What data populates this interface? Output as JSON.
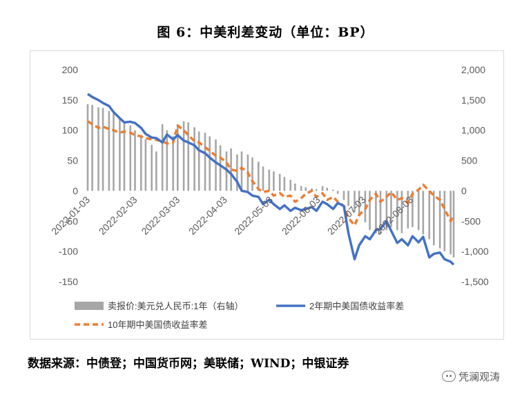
{
  "figure_title": "图 6：中美利差变动（单位：BP）",
  "source_note": "数据来源：中债登；中国货币网；美联储；WIND；中银证券",
  "watermark": {
    "text": "凭澜观涛",
    "icon": "wechat-icon"
  },
  "colors": {
    "bars": "#a6a6a6",
    "two_year": "#4472c4",
    "ten_year": "#ed7d31",
    "axis_text": "#595959"
  },
  "chart_data": {
    "type": "bar-line-combo",
    "left_axis": {
      "ticks": [
        "200",
        "150",
        "100",
        "50",
        "0",
        "-50",
        "-100",
        "-150"
      ],
      "ylim": [
        -150,
        200
      ]
    },
    "right_axis": {
      "ticks": [
        "2,000",
        "1,500",
        "1,000",
        "500",
        "0",
        "-500",
        "-1,000",
        "-1,500"
      ],
      "ylim": [
        -1500,
        2000
      ]
    },
    "x_tick_labels": [
      "2022-01-03",
      "2022-02-03",
      "2022-03-03",
      "2022-04-03",
      "2022-05-03",
      "2022-06-03",
      "2022-07-03",
      "2022-08-03"
    ],
    "x_range": [
      "2022-01-03",
      "2022-08-31"
    ],
    "legend": {
      "placement": "bottom",
      "entries": [
        "卖报价:美元兑人民币:1年（右轴）",
        "2年期中美国债收益率差",
        "10年期中美国债收益率差"
      ]
    },
    "bars": {
      "name": "卖报价:美元兑人民币:1年（右轴）",
      "axis": "right",
      "points": [
        [
          "2022-01-03",
          1430
        ],
        [
          "2022-01-06",
          1420
        ],
        [
          "2022-01-10",
          1380
        ],
        [
          "2022-01-13",
          1370
        ],
        [
          "2022-01-17",
          1320
        ],
        [
          "2022-01-20",
          1280
        ],
        [
          "2022-01-24",
          1200
        ],
        [
          "2022-01-27",
          1150
        ],
        [
          "2022-01-31",
          1080
        ],
        [
          "2022-02-03",
          1000
        ],
        [
          "2022-02-07",
          920
        ],
        [
          "2022-02-10",
          850
        ],
        [
          "2022-02-14",
          760
        ],
        [
          "2022-02-17",
          650
        ],
        [
          "2022-02-21",
          1100
        ],
        [
          "2022-02-24",
          1000
        ],
        [
          "2022-02-28",
          900
        ],
        [
          "2022-03-03",
          1080
        ],
        [
          "2022-03-07",
          1150
        ],
        [
          "2022-03-10",
          1130
        ],
        [
          "2022-03-14",
          1050
        ],
        [
          "2022-03-17",
          980
        ],
        [
          "2022-03-21",
          960
        ],
        [
          "2022-03-24",
          900
        ],
        [
          "2022-03-28",
          850
        ],
        [
          "2022-03-31",
          750
        ],
        [
          "2022-04-04",
          650
        ],
        [
          "2022-04-07",
          700
        ],
        [
          "2022-04-11",
          600
        ],
        [
          "2022-04-14",
          650
        ],
        [
          "2022-04-18",
          600
        ],
        [
          "2022-04-21",
          550
        ],
        [
          "2022-04-25",
          480
        ],
        [
          "2022-04-28",
          400
        ],
        [
          "2022-05-02",
          350
        ],
        [
          "2022-05-05",
          320
        ],
        [
          "2022-05-09",
          280
        ],
        [
          "2022-05-12",
          230
        ],
        [
          "2022-05-16",
          180
        ],
        [
          "2022-05-19",
          120
        ],
        [
          "2022-05-23",
          80
        ],
        [
          "2022-05-26",
          60
        ],
        [
          "2022-05-30",
          40
        ],
        [
          "2022-06-02",
          30
        ],
        [
          "2022-06-06",
          80
        ],
        [
          "2022-06-09",
          50
        ],
        [
          "2022-06-13",
          20
        ],
        [
          "2022-06-16",
          -50
        ],
        [
          "2022-06-20",
          -150
        ],
        [
          "2022-06-23",
          -250
        ],
        [
          "2022-06-27",
          -350
        ],
        [
          "2022-06-30",
          -420
        ],
        [
          "2022-07-04",
          -520
        ],
        [
          "2022-07-07",
          -650
        ],
        [
          "2022-07-11",
          -700
        ],
        [
          "2022-07-14",
          -720
        ],
        [
          "2022-07-18",
          -650
        ],
        [
          "2022-07-21",
          -600
        ],
        [
          "2022-07-25",
          -650
        ],
        [
          "2022-07-28",
          -700
        ],
        [
          "2022-08-01",
          -620
        ],
        [
          "2022-08-04",
          -600
        ],
        [
          "2022-08-08",
          -650
        ],
        [
          "2022-08-11",
          -720
        ],
        [
          "2022-08-15",
          -800
        ],
        [
          "2022-08-18",
          -900
        ],
        [
          "2022-08-22",
          -950
        ],
        [
          "2022-08-25",
          -1000
        ],
        [
          "2022-08-29",
          -1050
        ],
        [
          "2022-08-31",
          -1100
        ]
      ]
    },
    "series": [
      {
        "name": "2年期中美国债收益率差",
        "axis": "left",
        "points": [
          [
            "2022-01-03",
            160
          ],
          [
            "2022-01-06",
            155
          ],
          [
            "2022-01-10",
            150
          ],
          [
            "2022-01-13",
            145
          ],
          [
            "2022-01-17",
            140
          ],
          [
            "2022-01-20",
            130
          ],
          [
            "2022-01-24",
            120
          ],
          [
            "2022-01-27",
            113
          ],
          [
            "2022-01-31",
            114
          ],
          [
            "2022-02-03",
            112
          ],
          [
            "2022-02-07",
            104
          ],
          [
            "2022-02-10",
            94
          ],
          [
            "2022-02-14",
            88
          ],
          [
            "2022-02-17",
            87
          ],
          [
            "2022-02-21",
            80
          ],
          [
            "2022-02-24",
            93
          ],
          [
            "2022-02-28",
            85
          ],
          [
            "2022-03-03",
            92
          ],
          [
            "2022-03-07",
            83
          ],
          [
            "2022-03-10",
            80
          ],
          [
            "2022-03-14",
            75
          ],
          [
            "2022-03-17",
            67
          ],
          [
            "2022-03-21",
            62
          ],
          [
            "2022-03-24",
            55
          ],
          [
            "2022-03-28",
            47
          ],
          [
            "2022-03-31",
            42
          ],
          [
            "2022-04-04",
            35
          ],
          [
            "2022-04-07",
            28
          ],
          [
            "2022-04-11",
            15
          ],
          [
            "2022-04-14",
            0
          ],
          [
            "2022-04-18",
            -2
          ],
          [
            "2022-04-21",
            -8
          ],
          [
            "2022-04-25",
            -10
          ],
          [
            "2022-04-28",
            -22
          ],
          [
            "2022-05-02",
            -15
          ],
          [
            "2022-05-05",
            -22
          ],
          [
            "2022-05-09",
            -30
          ],
          [
            "2022-05-12",
            -24
          ],
          [
            "2022-05-16",
            -33
          ],
          [
            "2022-05-19",
            -28
          ],
          [
            "2022-05-23",
            -32
          ],
          [
            "2022-05-26",
            -30
          ],
          [
            "2022-05-30",
            -27
          ],
          [
            "2022-06-02",
            -33
          ],
          [
            "2022-06-06",
            -18
          ],
          [
            "2022-06-09",
            -22
          ],
          [
            "2022-06-13",
            -30
          ],
          [
            "2022-06-16",
            -20
          ],
          [
            "2022-06-20",
            -25
          ],
          [
            "2022-06-23",
            -70
          ],
          [
            "2022-06-27",
            -113
          ],
          [
            "2022-06-30",
            -90
          ],
          [
            "2022-07-04",
            -75
          ],
          [
            "2022-07-07",
            -80
          ],
          [
            "2022-07-11",
            -65
          ],
          [
            "2022-07-14",
            -63
          ],
          [
            "2022-07-18",
            -50
          ],
          [
            "2022-07-21",
            -66
          ],
          [
            "2022-07-25",
            -86
          ],
          [
            "2022-07-28",
            -80
          ],
          [
            "2022-08-01",
            -90
          ],
          [
            "2022-08-04",
            -75
          ],
          [
            "2022-08-08",
            -85
          ],
          [
            "2022-08-11",
            -76
          ],
          [
            "2022-08-15",
            -110
          ],
          [
            "2022-08-18",
            -104
          ],
          [
            "2022-08-22",
            -102
          ],
          [
            "2022-08-25",
            -113
          ],
          [
            "2022-08-29",
            -117
          ],
          [
            "2022-08-31",
            -122
          ]
        ]
      },
      {
        "name": "10年期中美国债收益率差",
        "axis": "left",
        "points": [
          [
            "2022-01-03",
            115
          ],
          [
            "2022-01-06",
            110
          ],
          [
            "2022-01-10",
            104
          ],
          [
            "2022-01-13",
            106
          ],
          [
            "2022-01-17",
            102
          ],
          [
            "2022-01-20",
            100
          ],
          [
            "2022-01-24",
            96
          ],
          [
            "2022-01-27",
            98
          ],
          [
            "2022-01-31",
            96
          ],
          [
            "2022-02-03",
            92
          ],
          [
            "2022-02-07",
            90
          ],
          [
            "2022-02-10",
            87
          ],
          [
            "2022-02-14",
            85
          ],
          [
            "2022-02-17",
            84
          ],
          [
            "2022-02-21",
            82
          ],
          [
            "2022-02-24",
            78
          ],
          [
            "2022-02-28",
            80
          ],
          [
            "2022-03-03",
            108
          ],
          [
            "2022-03-07",
            100
          ],
          [
            "2022-03-10",
            92
          ],
          [
            "2022-03-14",
            82
          ],
          [
            "2022-03-17",
            80
          ],
          [
            "2022-03-21",
            72
          ],
          [
            "2022-03-24",
            66
          ],
          [
            "2022-03-28",
            58
          ],
          [
            "2022-03-31",
            55
          ],
          [
            "2022-04-04",
            47
          ],
          [
            "2022-04-07",
            35
          ],
          [
            "2022-04-11",
            33
          ],
          [
            "2022-04-14",
            38
          ],
          [
            "2022-04-18",
            30
          ],
          [
            "2022-04-21",
            16
          ],
          [
            "2022-04-25",
            3
          ],
          [
            "2022-04-28",
            -2
          ],
          [
            "2022-05-02",
            0
          ],
          [
            "2022-05-05",
            -8
          ],
          [
            "2022-05-09",
            -4
          ],
          [
            "2022-05-12",
            -10
          ],
          [
            "2022-05-16",
            -8
          ],
          [
            "2022-05-19",
            -18
          ],
          [
            "2022-05-23",
            -12
          ],
          [
            "2022-05-26",
            -5
          ],
          [
            "2022-05-30",
            0
          ],
          [
            "2022-06-02",
            -10
          ],
          [
            "2022-06-06",
            -4
          ],
          [
            "2022-06-09",
            -15
          ],
          [
            "2022-06-13",
            -10
          ],
          [
            "2022-06-16",
            -18
          ],
          [
            "2022-06-20",
            -25
          ],
          [
            "2022-06-23",
            -45
          ],
          [
            "2022-06-27",
            -57
          ],
          [
            "2022-06-30",
            -40
          ],
          [
            "2022-07-04",
            -30
          ],
          [
            "2022-07-07",
            -15
          ],
          [
            "2022-07-11",
            -5
          ],
          [
            "2022-07-14",
            -18
          ],
          [
            "2022-07-18",
            -10
          ],
          [
            "2022-07-21",
            -2
          ],
          [
            "2022-07-25",
            -15
          ],
          [
            "2022-07-28",
            -12
          ],
          [
            "2022-08-01",
            -20
          ],
          [
            "2022-08-04",
            -5
          ],
          [
            "2022-08-08",
            2
          ],
          [
            "2022-08-11",
            10
          ],
          [
            "2022-08-15",
            0
          ],
          [
            "2022-08-18",
            -8
          ],
          [
            "2022-08-22",
            -15
          ],
          [
            "2022-08-25",
            -30
          ],
          [
            "2022-08-29",
            -50
          ],
          [
            "2022-08-31",
            -40
          ]
        ]
      }
    ]
  }
}
